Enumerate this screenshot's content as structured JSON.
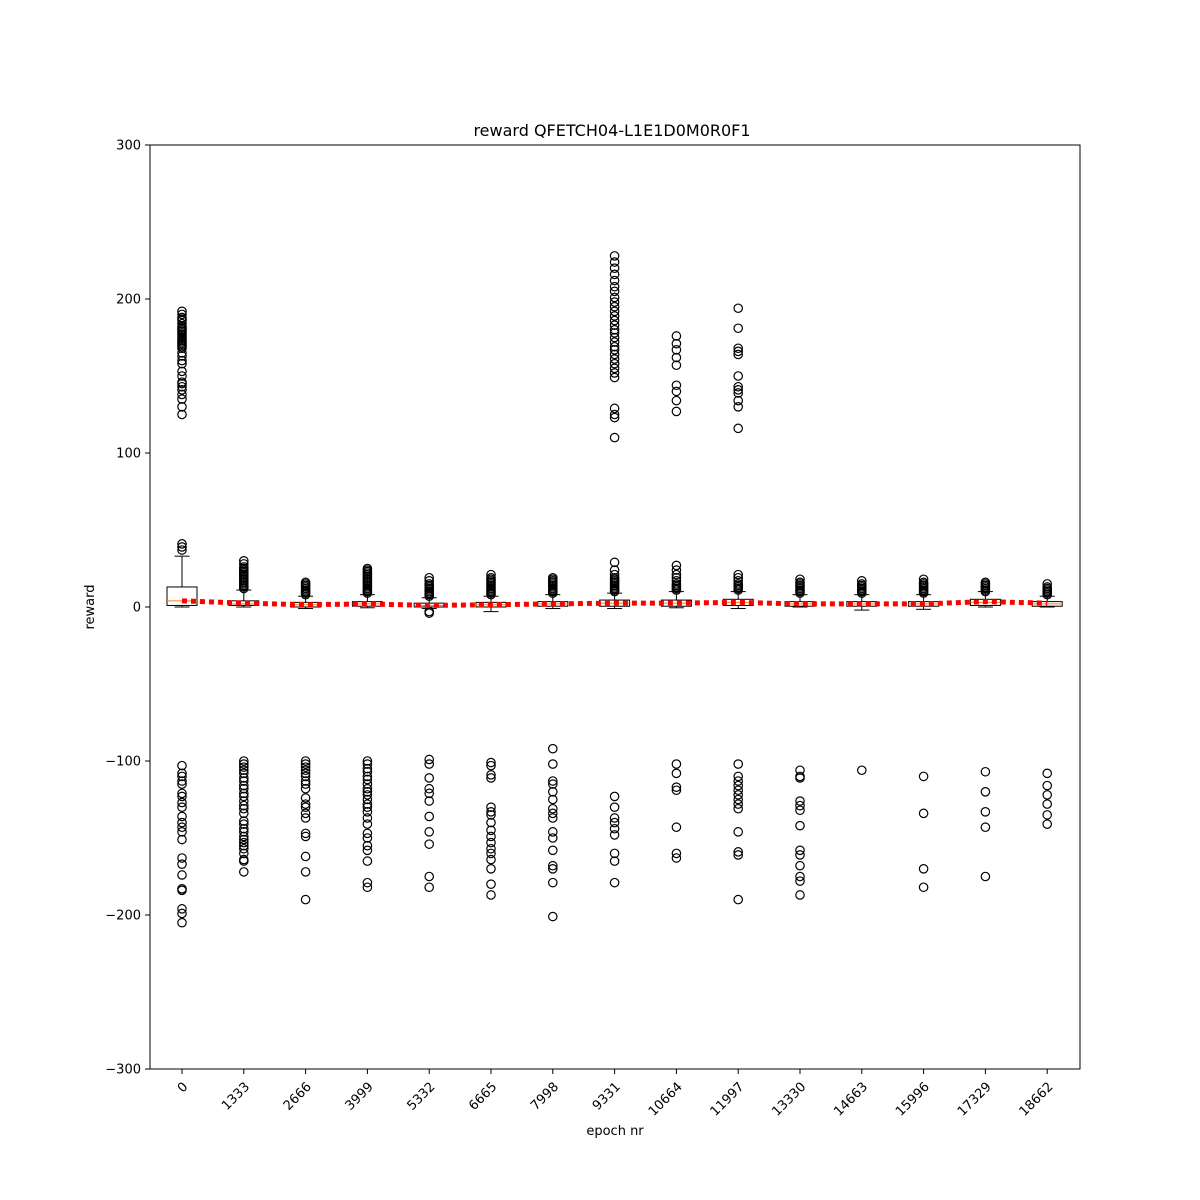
{
  "chart_data": {
    "type": "box",
    "title": "reward QFETCH04-L1E1D0M0R0F1",
    "xlabel": "epoch nr",
    "ylabel": "reward",
    "ylim": [
      -300,
      300
    ],
    "yticks": [
      300,
      200,
      100,
      0,
      -100,
      -200,
      -300
    ],
    "ytick_labels": [
      "300",
      "200",
      "100",
      "0",
      "−100",
      "−200",
      "−300"
    ],
    "categories": [
      "0",
      "1333",
      "2666",
      "3999",
      "5332",
      "6665",
      "7998",
      "9331",
      "10664",
      "11997",
      "13330",
      "14663",
      "15996",
      "17329",
      "18662"
    ],
    "boxes": [
      {
        "q1": 1,
        "median": 4,
        "q3": 13,
        "whisker_low": 0,
        "whisker_high": 33
      },
      {
        "q1": 1,
        "median": 2,
        "q3": 4,
        "whisker_low": 0,
        "whisker_high": 11
      },
      {
        "q1": 0,
        "median": 1.5,
        "q3": 3,
        "whisker_low": -1,
        "whisker_high": 7
      },
      {
        "q1": 0.5,
        "median": 2,
        "q3": 3.5,
        "whisker_low": -0.5,
        "whisker_high": 8
      },
      {
        "q1": 0,
        "median": 1,
        "q3": 2.5,
        "whisker_low": -1,
        "whisker_high": 6
      },
      {
        "q1": 0,
        "median": 1.5,
        "q3": 3,
        "whisker_low": -3,
        "whisker_high": 7
      },
      {
        "q1": 0.5,
        "median": 2,
        "q3": 3.5,
        "whisker_low": -1,
        "whisker_high": 8
      },
      {
        "q1": 0.5,
        "median": 2.5,
        "q3": 4.5,
        "whisker_low": -1,
        "whisker_high": 9
      },
      {
        "q1": 0.5,
        "median": 2.5,
        "q3": 4.5,
        "whisker_low": -0.5,
        "whisker_high": 10
      },
      {
        "q1": 1,
        "median": 3,
        "q3": 5,
        "whisker_low": -1,
        "whisker_high": 10
      },
      {
        "q1": 0.5,
        "median": 2,
        "q3": 3.5,
        "whisker_low": 0,
        "whisker_high": 8
      },
      {
        "q1": 0.5,
        "median": 2,
        "q3": 3.5,
        "whisker_low": -2,
        "whisker_high": 8
      },
      {
        "q1": 0.5,
        "median": 2,
        "q3": 3.5,
        "whisker_low": -1.5,
        "whisker_high": 8
      },
      {
        "q1": 1,
        "median": 3,
        "q3": 5,
        "whisker_low": 0,
        "whisker_high": 10
      },
      {
        "q1": 0.5,
        "median": 2,
        "q3": 3.5,
        "whisker_low": 0,
        "whisker_high": 7
      }
    ],
    "outliers": [
      [
        192,
        190,
        188,
        187,
        186,
        184,
        182,
        181,
        180,
        179,
        178,
        177,
        176,
        175,
        174,
        173,
        172,
        171,
        170,
        169,
        168,
        165,
        163,
        160,
        158,
        153,
        150,
        146,
        145,
        143,
        141,
        138,
        135,
        130,
        125,
        41,
        39,
        37,
        -103,
        -108,
        -110,
        -113,
        -115,
        -121,
        -123,
        -127,
        -130,
        -136,
        -140,
        -143,
        -146,
        -151,
        -163,
        -167,
        -174,
        -183,
        -184,
        -196,
        -199,
        -205
      ],
      [
        30,
        28,
        26,
        25,
        24,
        23,
        22,
        21,
        20,
        19,
        18,
        17,
        16,
        15,
        14,
        13,
        12,
        -100,
        -102,
        -104,
        -106,
        -108,
        -111,
        -113,
        -116,
        -118,
        -121,
        -123,
        -126,
        -129,
        -131,
        -134,
        -139,
        -141,
        -144,
        -146,
        -149,
        -151,
        -153,
        -155,
        -157,
        -160,
        -164,
        -165,
        -172
      ],
      [
        16,
        15,
        14,
        13,
        12,
        11,
        10,
        9,
        8,
        -100,
        -102,
        -104,
        -106,
        -108,
        -110,
        -113,
        -115,
        -118,
        -124,
        -128,
        -130,
        -134,
        -137,
        -147,
        -149,
        -162,
        -172,
        -190
      ],
      [
        25,
        24,
        23,
        22,
        21,
        20,
        19,
        18,
        17,
        16,
        15,
        14,
        13,
        12,
        11,
        10,
        9,
        -100,
        -102,
        -105,
        -107,
        -110,
        -112,
        -115,
        -118,
        -120,
        -122,
        -125,
        -128,
        -130,
        -133,
        -137,
        -141,
        -147,
        -150,
        -155,
        -158,
        -165,
        -179,
        -182
      ],
      [
        19,
        17,
        15,
        14,
        13,
        12,
        11,
        10,
        9,
        8,
        7,
        -3,
        -4,
        -99,
        -102,
        -111,
        -118,
        -121,
        -126,
        -136,
        -146,
        -154,
        -175,
        -182
      ],
      [
        21,
        19,
        18,
        17,
        16,
        15,
        14,
        13,
        12,
        11,
        10,
        9,
        8,
        -101,
        -103,
        -109,
        -111,
        -130,
        -133,
        -135,
        -140,
        -145,
        -149,
        -153,
        -157,
        -160,
        -164,
        -170,
        -180,
        -187
      ],
      [
        19,
        18,
        17,
        16,
        15,
        14,
        13,
        12,
        11,
        10,
        9,
        -92,
        -102,
        -113,
        -115,
        -120,
        -125,
        -131,
        -134,
        -137,
        -146,
        -150,
        -158,
        -168,
        -170,
        -179,
        -201
      ],
      [
        228,
        224,
        220,
        216,
        212,
        208,
        205,
        201,
        198,
        195,
        192,
        189,
        186,
        183,
        180,
        178,
        175,
        172,
        169,
        167,
        164,
        161,
        158,
        155,
        152,
        149,
        129,
        125,
        123,
        110,
        29,
        24,
        21,
        19,
        18,
        17,
        16,
        15,
        14,
        13,
        12,
        11,
        10,
        -123,
        -130,
        -137,
        -140,
        -144,
        -148,
        -160,
        -165,
        -179
      ],
      [
        176,
        171,
        167,
        162,
        157,
        144,
        140,
        134,
        127,
        27,
        24,
        21,
        19,
        17,
        15,
        14,
        13,
        12,
        11,
        -102,
        -108,
        -117,
        -119,
        -143,
        -160,
        -163
      ],
      [
        194,
        181,
        168,
        166,
        164,
        150,
        143,
        141,
        139,
        134,
        130,
        116,
        21,
        19,
        17,
        15,
        14,
        13,
        12,
        11,
        -102,
        -110,
        -113,
        -116,
        -119,
        -122,
        -125,
        -128,
        -131,
        -146,
        -159,
        -161,
        -190
      ],
      [
        18,
        16,
        15,
        14,
        13,
        12,
        11,
        10,
        9,
        -106,
        -110,
        -111,
        -126,
        -129,
        -132,
        -142,
        -158,
        -161,
        -168,
        -175,
        -178,
        -187
      ],
      [
        17,
        15,
        14,
        13,
        12,
        11,
        10,
        9,
        -106
      ],
      [
        18,
        16,
        15,
        14,
        13,
        12,
        11,
        10,
        9,
        -110,
        -134,
        -170,
        -182
      ],
      [
        16,
        15,
        14,
        13,
        12,
        11,
        10,
        -107,
        -120,
        -133,
        -143,
        -175
      ],
      [
        15,
        13,
        12,
        11,
        10,
        9,
        8,
        -108,
        -116,
        -122,
        -128,
        -135,
        -141
      ]
    ],
    "mean_line": [
      4,
      2.5,
      1.5,
      2,
      1,
      1.5,
      2,
      2.5,
      2.5,
      3,
      2,
      2,
      2,
      3.5,
      2.5
    ],
    "colors": {
      "box": "#000000",
      "median": "#ff7f0e",
      "mean_line": "#ff0000",
      "outlier": "#000000"
    },
    "grid": false,
    "legend": "none"
  }
}
